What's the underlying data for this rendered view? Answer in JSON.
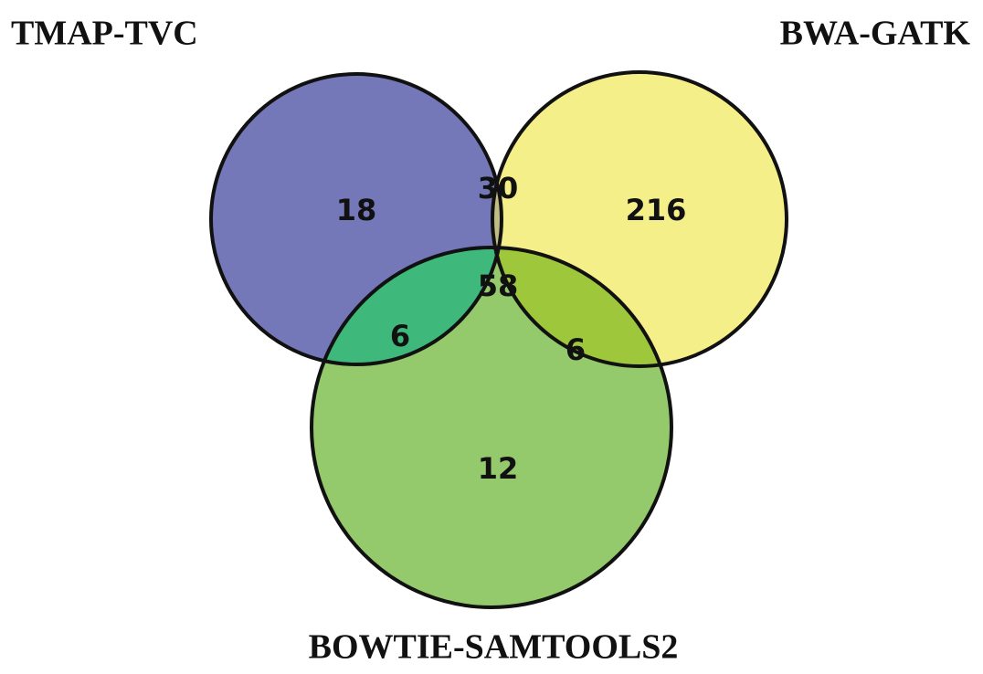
{
  "chart_data": {
    "type": "venn",
    "sets": [
      {
        "name": "TMAP-TVC",
        "color": "#7478b8"
      },
      {
        "name": "BWA-GATK",
        "color": "#f5ef8a"
      },
      {
        "name": "BOWTIE-SAMTOOLS2",
        "color": "#94c96c"
      }
    ],
    "regions": [
      {
        "sets": [
          0
        ],
        "value": 18,
        "color": "#7478b8"
      },
      {
        "sets": [
          0,
          1
        ],
        "value": 30,
        "color": "#c1bd85"
      },
      {
        "sets": [
          1
        ],
        "value": 216,
        "color": "#f5ef8a"
      },
      {
        "sets": [
          0,
          1,
          2
        ],
        "value": 58,
        "color": "#6cbf3f"
      },
      {
        "sets": [
          0,
          2
        ],
        "value": 6,
        "color": "#3fb97b"
      },
      {
        "sets": [
          1,
          2
        ],
        "value": 6,
        "color": "#9ec73c"
      },
      {
        "sets": [
          2
        ],
        "value": 12,
        "color": "#94c96c"
      }
    ]
  }
}
